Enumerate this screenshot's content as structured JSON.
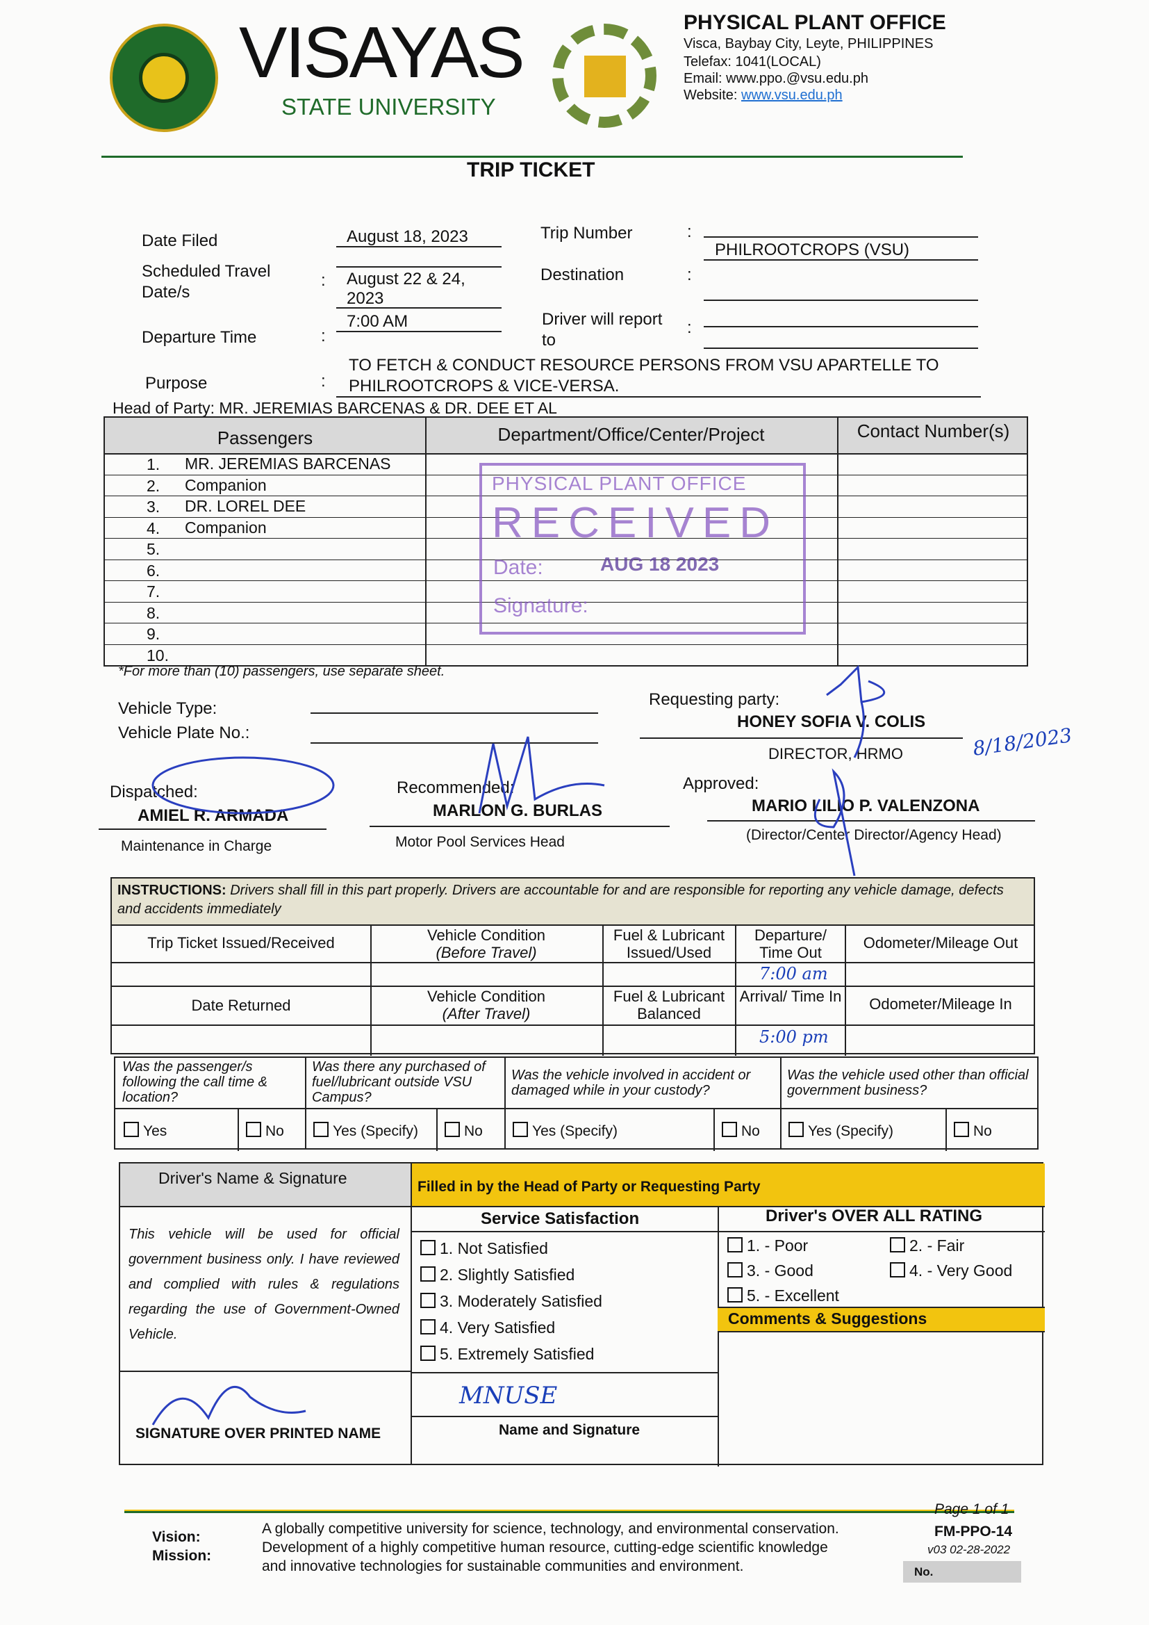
{
  "header": {
    "university_name": "VISAYAS",
    "university_sub": "STATE UNIVERSITY",
    "seal_text": "VISAYAS STATE UNIVERSITY",
    "office_logo_text": "PHYSICAL PLANT OFFICE",
    "office": "PHYSICAL PLANT OFFICE",
    "address": "Visca, Baybay City, Leyte, PHILIPPINES",
    "telefax": "Telefax: 1041(LOCAL)",
    "email": "Email: www.ppo.@vsu.edu.ph",
    "website_label": "Website: ",
    "website": "www.vsu.edu.ph",
    "colors": {
      "green": "#1f6b2a",
      "yellow": "#f2c40f",
      "link": "#1f6fd1"
    }
  },
  "title": "TRIP TICKET",
  "form": {
    "date_filed_label": "Date Filed",
    "date_filed": "August 18, 2023",
    "scheduled_label": "Scheduled Travel",
    "scheduled_label2": "Date/s",
    "scheduled_1": "August 22 & 24,",
    "scheduled_2": "2023",
    "departure_label": "Departure Time",
    "departure": "7:00 AM",
    "purpose_label": "Purpose",
    "purpose_1": "TO FETCH & CONDUCT RESOURCE PERSONS FROM VSU APARTELLE TO",
    "purpose_2": "PHILROOTCROPS & VICE-VERSA.",
    "trip_number_label": "Trip Number",
    "trip_number_value": "PHILROOTCROPS (VSU)",
    "destination_label": "Destination",
    "driver_report_label": "Driver will report",
    "driver_report_label2": "to",
    "colon": ":",
    "head_of_party_label": "Head of Party:",
    "head_of_party": "MR. JEREMIAS BARCENAS & DR. DEE ET AL"
  },
  "passengers": {
    "headers": [
      "Passengers",
      "Department/Office/Center/Project",
      "Contact Number(s)"
    ],
    "rows": [
      {
        "no": "1.",
        "name": "MR. JEREMIAS BARCENAS"
      },
      {
        "no": "2.",
        "name": "Companion"
      },
      {
        "no": "3.",
        "name": "DR. LOREL DEE"
      },
      {
        "no": "4.",
        "name": "Companion"
      },
      {
        "no": "5.",
        "name": ""
      },
      {
        "no": "6.",
        "name": ""
      },
      {
        "no": "7.",
        "name": ""
      },
      {
        "no": "8.",
        "name": ""
      },
      {
        "no": "9.",
        "name": ""
      },
      {
        "no": "10.",
        "name": ""
      }
    ],
    "note": "*For more than (10) passengers, use separate sheet."
  },
  "stamp": {
    "office": "PHYSICAL PLANT OFFICE",
    "received": "RECEIVED",
    "date_label": "Date:",
    "date": "AUG 18 2023",
    "signature_label": "Signature:"
  },
  "vehicle": {
    "type_label": "Vehicle Type:",
    "plate_label": "Vehicle Plate No.:"
  },
  "signatories": {
    "requesting_label": "Requesting party:",
    "requesting_name": "HONEY SOFIA V. COLIS",
    "requesting_title": "DIRECTOR, HRMO",
    "requesting_date": "8/18/2023",
    "dispatched_label": "Dispatched:",
    "dispatched_name": "AMIEL R. ARMADA",
    "dispatched_title": "Maintenance in Charge",
    "recommended_label": "Recommended:",
    "recommended_name": "MARLON G. BURLAS",
    "recommended_title": "Motor Pool Services Head",
    "approved_label": "Approved:",
    "approved_name": "MARIO LILIO P. VALENZONA",
    "approved_title": "(Director/Center Director/Agency Head)"
  },
  "instructions": {
    "label": "INSTRUCTIONS:",
    "text": " Drivers shall fill in this part properly.  Drivers are accountable for and are responsible for reporting any vehicle damage, defects and accidents immediately",
    "row1": [
      "Trip Ticket Issued/Received",
      "Vehicle Condition",
      "(Before Travel)",
      "Fuel & Lubricant Issued/Used",
      "Departure/ Time Out",
      "Odometer/Mileage Out"
    ],
    "row2": [
      "Date Returned",
      "Vehicle Condition",
      "(After Travel)",
      "Fuel & Lubricant Balanced",
      "Arrival/ Time In",
      "Odometer/Mileage In"
    ],
    "time_out": "7:00 am",
    "time_in": "5:00 pm"
  },
  "questions": [
    {
      "q": "Was the passenger/s following the call time & location?",
      "yes": "Yes",
      "no": "No"
    },
    {
      "q": "Was there any purchased of fuel/lubricant outside VSU Campus?",
      "yes": "Yes (Specify)",
      "no": "No"
    },
    {
      "q": "Was the vehicle involved in accident or damaged while in your custody?",
      "yes": "Yes (Specify)",
      "no": "No"
    },
    {
      "q": "Was the vehicle used other than official government business?",
      "yes": "Yes (Specify)",
      "no": "No"
    }
  ],
  "driver": {
    "header": "Driver's Name & Signature",
    "statement": "This vehicle will be used for official government business only.  I have reviewed and complied with rules & regulations regarding the use of Government-Owned Vehicle.",
    "signature_label": "SIGNATURE OVER PRINTED NAME"
  },
  "head_party": {
    "header": "Filled in by the Head of Party or Requesting Party",
    "service_title": "Service Satisfaction",
    "service": [
      "1.  Not Satisfied",
      "2.  Slightly Satisfied",
      "3.  Moderately Satisfied",
      "4.  Very Satisfied",
      "5.  Extremely Satisfied"
    ],
    "rating_title": "Driver's OVER ALL RATING",
    "ratings": [
      "1. - Poor",
      "2. - Fair",
      "3. - Good",
      "4. - Very Good",
      "5. - Excellent"
    ],
    "comments_title": "Comments & Suggestions",
    "name_sig_label": "Name and Signature",
    "signature": "MNUSE"
  },
  "footer": {
    "vision_label": "Vision:",
    "mission_label": "Mission:",
    "vision": "A globally competitive university for science, technology, and environmental conservation.",
    "mission_1": "Development of a highly competitive human resource, cutting-edge scientific knowledge",
    "mission_2": "and innovative technologies for sustainable communities and environment.",
    "page": "Page 1 of 1",
    "form_code": "FM-PPO-14",
    "version": "v03 02-28-2022",
    "no_label": "No."
  }
}
